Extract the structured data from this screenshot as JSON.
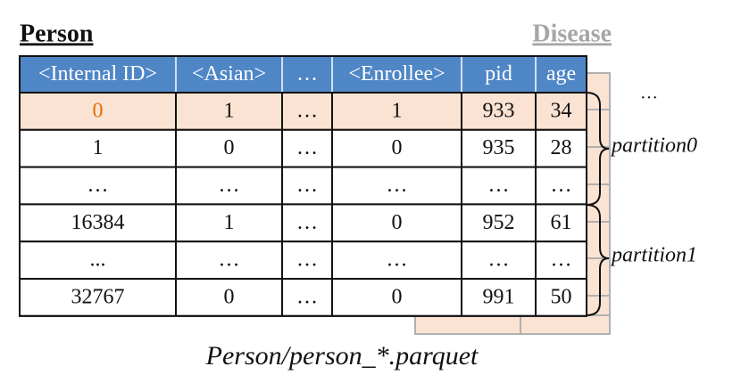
{
  "title": "Person",
  "background_table_title": "Disease",
  "table": {
    "columns": [
      "<Internal ID>",
      "<Asian>",
      "…",
      "<Enrollee>",
      "pid",
      "age"
    ],
    "rows": [
      [
        "0",
        "1",
        "…",
        "1",
        "933",
        "34"
      ],
      [
        "1",
        "0",
        "…",
        "0",
        "935",
        "28"
      ],
      [
        "…",
        "…",
        "…",
        "…",
        "…",
        "…"
      ],
      [
        "16384",
        "1",
        "…",
        "0",
        "952",
        "61"
      ],
      [
        "...",
        "…",
        "…",
        "…",
        "…",
        "…"
      ],
      [
        "32767",
        "0",
        "…",
        "0",
        "991",
        "50"
      ]
    ]
  },
  "partitions": [
    "partition0",
    "partition1"
  ],
  "more_tables": "…",
  "caption": "Person/person_*.parquet"
}
